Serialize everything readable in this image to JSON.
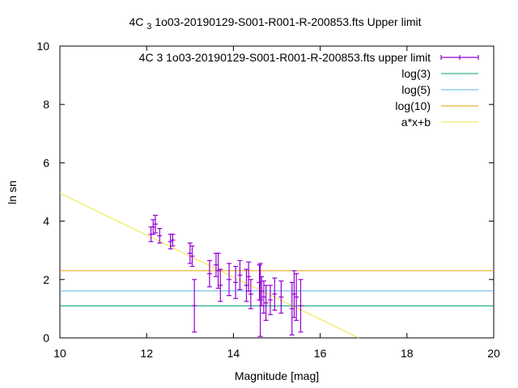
{
  "chart_data": {
    "type": "scatter",
    "title": "4C 3 1o03-20190129-S001-R001-R-200853.fts Upper limit",
    "xlabel": "Magnitude [mag]",
    "ylabel": "ln sn",
    "xlim": [
      10,
      20
    ],
    "ylim": [
      0,
      10
    ],
    "x_ticks": [
      "10",
      "12",
      "14",
      "16",
      "18",
      "20"
    ],
    "y_ticks": [
      "0",
      "2",
      "4",
      "6",
      "8",
      "10"
    ],
    "grid": false,
    "legend_position": "top-right",
    "colors": {
      "points": "#9400d3",
      "log3": "#009e73",
      "log5": "#56b4e9",
      "log10": "#e69f00",
      "fit": "#f0e442"
    },
    "series": [
      {
        "name": "4C 3 1o03-20190129-S001-R001-R-200853.fts upper limit",
        "kind": "errorbar",
        "points": [
          {
            "x": 12.1,
            "y": 3.55,
            "err": 0.25
          },
          {
            "x": 12.15,
            "y": 3.8,
            "err": 0.25
          },
          {
            "x": 12.2,
            "y": 3.9,
            "err": 0.3
          },
          {
            "x": 12.3,
            "y": 3.5,
            "err": 0.25
          },
          {
            "x": 12.55,
            "y": 3.3,
            "err": 0.25
          },
          {
            "x": 12.6,
            "y": 3.35,
            "err": 0.2
          },
          {
            "x": 13.0,
            "y": 2.9,
            "err": 0.35
          },
          {
            "x": 13.05,
            "y": 2.8,
            "err": 0.35
          },
          {
            "x": 13.1,
            "y": 1.1,
            "err": 0.9
          },
          {
            "x": 13.45,
            "y": 2.2,
            "err": 0.45
          },
          {
            "x": 13.6,
            "y": 2.5,
            "err": 0.4
          },
          {
            "x": 13.65,
            "y": 2.3,
            "err": 0.6
          },
          {
            "x": 13.7,
            "y": 1.8,
            "err": 0.55
          },
          {
            "x": 13.9,
            "y": 2.0,
            "err": 0.55
          },
          {
            "x": 14.05,
            "y": 1.9,
            "err": 0.55
          },
          {
            "x": 14.15,
            "y": 2.15,
            "err": 0.5
          },
          {
            "x": 14.3,
            "y": 1.8,
            "err": 0.55
          },
          {
            "x": 14.35,
            "y": 2.1,
            "err": 0.5
          },
          {
            "x": 14.4,
            "y": 1.5,
            "err": 0.5
          },
          {
            "x": 14.6,
            "y": 1.9,
            "err": 0.6
          },
          {
            "x": 14.62,
            "y": 1.3,
            "err": 1.25
          },
          {
            "x": 14.65,
            "y": 1.6,
            "err": 0.5
          },
          {
            "x": 14.7,
            "y": 1.4,
            "err": 0.55
          },
          {
            "x": 14.75,
            "y": 1.2,
            "err": 0.6
          },
          {
            "x": 14.85,
            "y": 1.3,
            "err": 0.5
          },
          {
            "x": 14.95,
            "y": 1.5,
            "err": 0.55
          },
          {
            "x": 15.1,
            "y": 1.4,
            "err": 0.55
          },
          {
            "x": 15.35,
            "y": 1.0,
            "err": 0.9
          },
          {
            "x": 15.4,
            "y": 1.5,
            "err": 0.8
          },
          {
            "x": 15.45,
            "y": 1.4,
            "err": 0.8
          },
          {
            "x": 15.55,
            "y": 1.1,
            "err": 0.9
          }
        ]
      },
      {
        "name": "log(3)",
        "kind": "hline",
        "y": 1.0986
      },
      {
        "name": "log(5)",
        "kind": "hline",
        "y": 1.6094
      },
      {
        "name": "log(10)",
        "kind": "hline",
        "y": 2.3026
      },
      {
        "name": "a*x+b",
        "kind": "fitline",
        "slope": -0.72,
        "intercept": 12.16
      }
    ]
  }
}
